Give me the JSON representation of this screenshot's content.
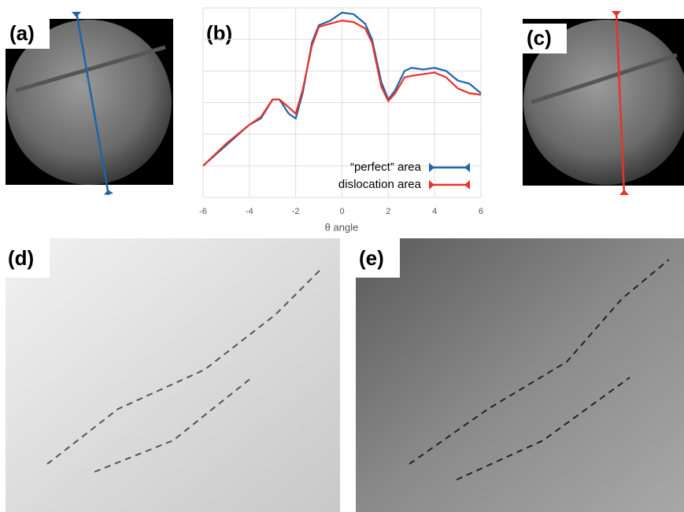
{
  "panels": [
    "(a)",
    "(b)",
    "(c)",
    "(d)",
    "(e)"
  ],
  "chart_data": {
    "type": "line",
    "x_label": "θ angle",
    "x": [
      -6,
      -5,
      -4,
      -3.5,
      -3,
      -2.7,
      -2.3,
      -2,
      -1.7,
      -1.3,
      -1,
      -0.5,
      0,
      0.5,
      1,
      1.3,
      1.7,
      2,
      2.3,
      2.7,
      3,
      3.5,
      4,
      4.5,
      5,
      5.5,
      6
    ],
    "series": [
      {
        "name": "“perfect” area",
        "color": "#1f64a8",
        "values": [
          1.0,
          1.65,
          2.3,
          2.5,
          3.1,
          3.1,
          2.65,
          2.5,
          3.3,
          4.9,
          5.45,
          5.6,
          5.85,
          5.8,
          5.5,
          5.0,
          3.65,
          3.1,
          3.4,
          4.0,
          4.1,
          4.05,
          4.1,
          4.0,
          3.7,
          3.6,
          3.3
        ]
      },
      {
        "name": "dislocation area",
        "color": "#e8332a",
        "values": [
          1.0,
          1.7,
          2.3,
          2.55,
          3.1,
          3.1,
          2.85,
          2.65,
          3.4,
          4.8,
          5.4,
          5.5,
          5.6,
          5.55,
          5.35,
          4.9,
          3.5,
          3.05,
          3.3,
          3.8,
          3.85,
          3.9,
          3.95,
          3.8,
          3.45,
          3.3,
          3.25
        ]
      }
    ],
    "xlim": [
      -6,
      6
    ],
    "xticks": [
      -6,
      -4,
      -2,
      0,
      2,
      4,
      6
    ],
    "ylim": [
      0,
      6
    ],
    "ygrid": [
      0,
      1,
      2,
      3,
      4,
      5,
      6
    ],
    "grid": true,
    "legend": "lower right"
  }
}
